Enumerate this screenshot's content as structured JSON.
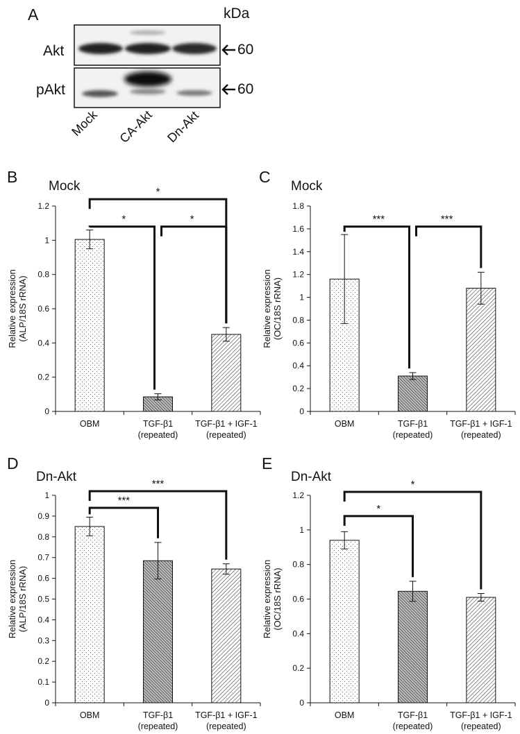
{
  "panel_a": {
    "label": "A",
    "kda_label": "kDa",
    "rows": [
      {
        "name": "Akt",
        "marker": "60"
      },
      {
        "name": "pAkt",
        "marker": "60"
      }
    ],
    "lanes": [
      "Mock",
      "CA-Akt",
      "Dn-Akt"
    ]
  },
  "chart_data": [
    {
      "id": "B",
      "type": "bar",
      "panel_label": "B",
      "title": "Mock",
      "ylabel_lines": [
        "Relative expression",
        "(ALP/18S rRNA)"
      ],
      "ylim": [
        0,
        1.2
      ],
      "yticks": [
        0,
        0.2,
        0.4,
        0.6,
        0.8,
        1,
        1.2
      ],
      "categories": [
        [
          "OBM"
        ],
        [
          "TGF-β1",
          "(repeated)"
        ],
        [
          "TGF-β1 + IGF-1",
          "(repeated)"
        ]
      ],
      "values": [
        1.005,
        0.085,
        0.45
      ],
      "errors": [
        0.055,
        0.018,
        0.04
      ],
      "patterns": [
        "dots",
        "dense",
        "diag"
      ],
      "brackets": [
        {
          "from": 0,
          "to": 1,
          "label": "*",
          "level": 1.08
        },
        {
          "from": 1,
          "to": 2,
          "label": "*",
          "level": 1.08
        },
        {
          "from": 0,
          "to": 2,
          "label": "*",
          "level": 1.24
        }
      ]
    },
    {
      "id": "C",
      "type": "bar",
      "panel_label": "C",
      "title": "Mock",
      "ylabel_lines": [
        "Relative expression",
        "(OC/18S rRNA)"
      ],
      "ylim": [
        0,
        1.8
      ],
      "yticks": [
        0,
        0.2,
        0.4,
        0.6,
        0.8,
        1,
        1.2,
        1.4,
        1.6,
        1.8
      ],
      "categories": [
        [
          "OBM"
        ],
        [
          "TGF-β1",
          "(repeated)"
        ],
        [
          "TGF-β1 + IGF-1",
          "(repeated)"
        ]
      ],
      "values": [
        1.16,
        0.31,
        1.08
      ],
      "errors": [
        0.39,
        0.03,
        0.14
      ],
      "patterns": [
        "dots",
        "dense",
        "diag"
      ],
      "brackets": [
        {
          "from": 0,
          "to": 1,
          "label": "***",
          "level": 1.62
        },
        {
          "from": 1,
          "to": 2,
          "label": "***",
          "level": 1.62
        }
      ]
    },
    {
      "id": "D",
      "type": "bar",
      "panel_label": "D",
      "title": "Dn-Akt",
      "ylabel_lines": [
        "Relative expression",
        "(ALP/18S rRNA)"
      ],
      "ylim": [
        0,
        1
      ],
      "yticks": [
        0,
        0.1,
        0.2,
        0.3,
        0.4,
        0.5,
        0.6,
        0.7,
        0.8,
        0.9,
        1
      ],
      "categories": [
        [
          "OBM"
        ],
        [
          "TGF-β1",
          "(repeated)"
        ],
        [
          "TGF-β1 + IGF-1",
          "(repeated)"
        ]
      ],
      "values": [
        0.85,
        0.685,
        0.645
      ],
      "errors": [
        0.045,
        0.088,
        0.025
      ],
      "patterns": [
        "dots",
        "dense",
        "diag"
      ],
      "brackets": [
        {
          "from": 0,
          "to": 1,
          "label": "***",
          "level": 0.94
        },
        {
          "from": 0,
          "to": 2,
          "label": "***",
          "level": 1.02
        }
      ]
    },
    {
      "id": "E",
      "type": "bar",
      "panel_label": "E",
      "title": "Dn-Akt",
      "ylabel_lines": [
        "Relative expression",
        "(OC/18S rRNA)"
      ],
      "ylim": [
        0,
        1.2
      ],
      "yticks": [
        0,
        0.2,
        0.4,
        0.6,
        0.8,
        1,
        1.2
      ],
      "categories": [
        [
          "OBM"
        ],
        [
          "TGF-β1",
          "(repeated)"
        ],
        [
          "TGF-β1 + IGF-1",
          "(repeated)"
        ]
      ],
      "values": [
        0.94,
        0.645,
        0.61
      ],
      "errors": [
        0.05,
        0.058,
        0.022
      ],
      "patterns": [
        "dots",
        "dense",
        "diag"
      ],
      "brackets": [
        {
          "from": 0,
          "to": 1,
          "label": "*",
          "level": 1.08
        },
        {
          "from": 0,
          "to": 2,
          "label": "*",
          "level": 1.22
        }
      ]
    }
  ]
}
